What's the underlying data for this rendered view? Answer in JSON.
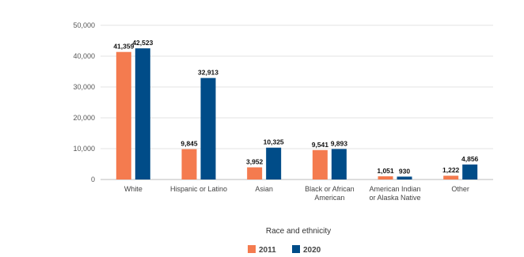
{
  "chart_data": {
    "type": "bar",
    "categories": [
      [
        "White"
      ],
      [
        "Hispanic or Latino"
      ],
      [
        "Asian"
      ],
      [
        "Black or African",
        "American"
      ],
      [
        "American Indian",
        "or Alaska Native"
      ],
      [
        "Other"
      ]
    ],
    "series": [
      {
        "name": "2011",
        "color": "#F47B4F",
        "values": [
          41359,
          9845,
          3952,
          9541,
          1051,
          1222
        ],
        "labels": [
          "41,359",
          "9,845",
          "3,952",
          "9,541",
          "1,051",
          "1,222"
        ]
      },
      {
        "name": "2020",
        "color": "#004C88",
        "values": [
          42523,
          32913,
          10325,
          9893,
          930,
          4856
        ],
        "labels": [
          "42,523",
          "32,913",
          "10,325",
          "9,893",
          "930",
          "4,856"
        ]
      }
    ],
    "xlabel": "Race and ethnicity",
    "ylabel": "",
    "ylim": [
      0,
      50000
    ],
    "yticks": [
      0,
      10000,
      20000,
      30000,
      40000,
      50000
    ],
    "ytick_labels": [
      "0",
      "10,000",
      "20,000",
      "30,000",
      "40,000",
      "50,000"
    ],
    "grid": true,
    "legend_position": "bottom-center"
  }
}
